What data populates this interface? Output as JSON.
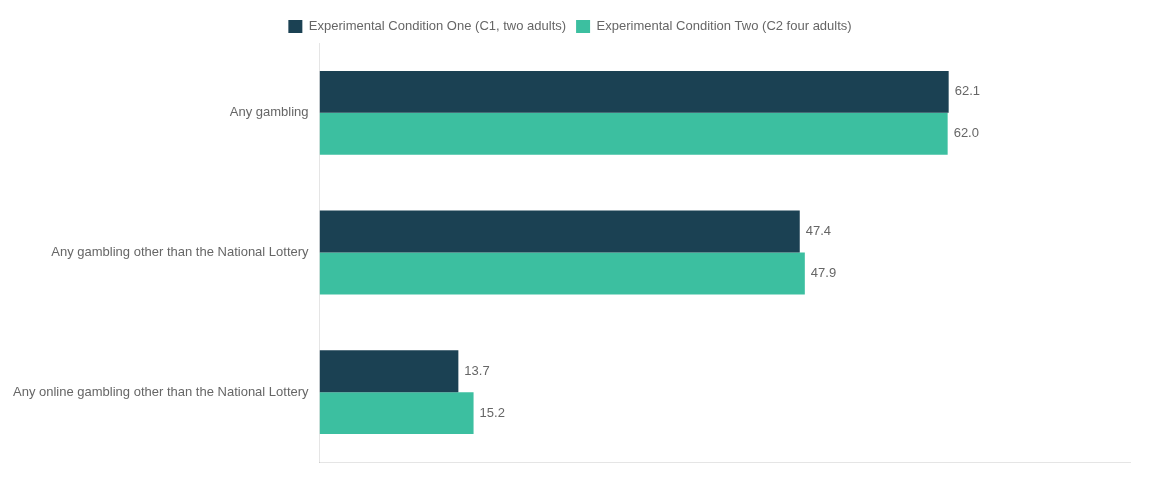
{
  "chart_data": {
    "type": "bar",
    "orientation": "horizontal",
    "categories": [
      "Any gambling",
      "Any gambling other than the National Lottery",
      "Any online gambling other than the National Lottery"
    ],
    "series": [
      {
        "name": "Experimental Condition One (C1, two adults)",
        "color": "#1b4153",
        "values": [
          62.1,
          47.4,
          13.7
        ]
      },
      {
        "name": "Experimental Condition Two (C2 four adults)",
        "color": "#3cbfa0",
        "values": [
          62.0,
          47.9,
          15.2
        ],
        "value_labels": [
          "62.0",
          "47.9",
          "15.2"
        ]
      }
    ],
    "xlim": [
      0,
      80
    ],
    "grid": false,
    "legend": "top",
    "data_labels": true,
    "tick_labels": "y"
  }
}
